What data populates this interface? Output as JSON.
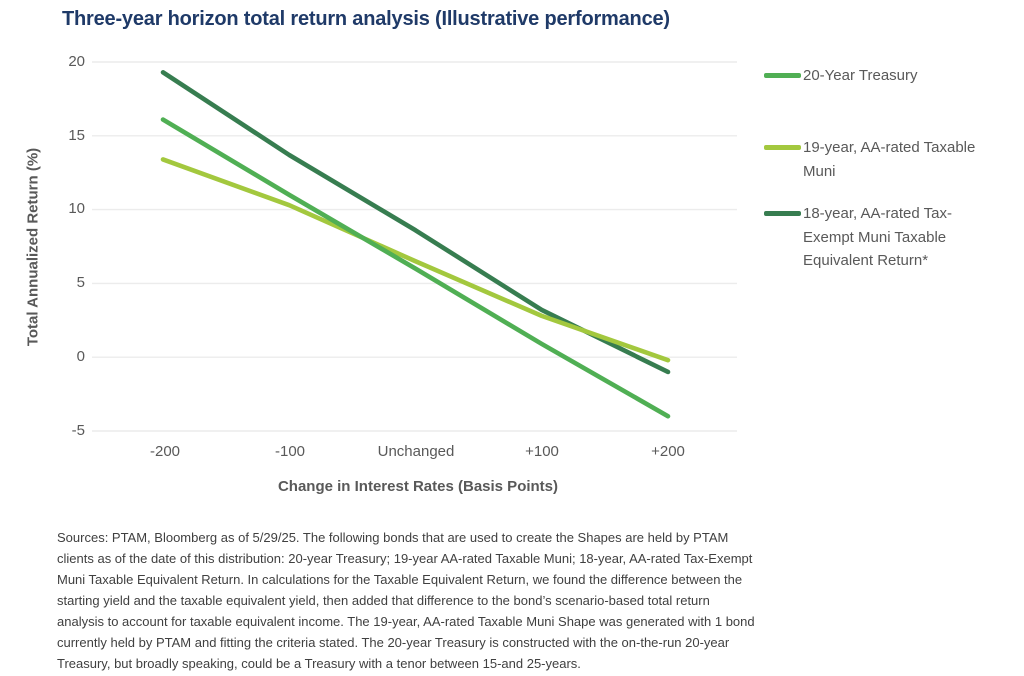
{
  "title": "Three-year horizon total return analysis (Illustrative performance)",
  "chart_data": {
    "type": "line",
    "categories": [
      "-200",
      "-100",
      "Unchanged",
      "+100",
      "+200"
    ],
    "series": [
      {
        "name": "20-Year Treasury",
        "color": "#50AF54",
        "values": [
          16.1,
          11.0,
          6.0,
          0.9,
          -4.0
        ]
      },
      {
        "name": "19-year, AA-rated Taxable Muni",
        "color": "#A3C83E",
        "values": [
          13.4,
          10.3,
          6.5,
          2.8,
          -0.2
        ]
      },
      {
        "name": "18-year, AA-rated Tax-Exempt Muni Taxable Equivalent Return*",
        "color": "#377D50",
        "values": [
          19.3,
          13.7,
          8.6,
          3.2,
          -1.0
        ]
      }
    ],
    "xlabel": "Change in Interest Rates (Basis Points)",
    "ylabel": "Total Annualized Return (%)",
    "ylim": [
      -5,
      20
    ],
    "yticks": [
      20,
      15,
      10,
      5,
      0,
      -5
    ],
    "ytick_labels": [
      "20",
      "15",
      "10",
      "5",
      "0",
      "-5"
    ],
    "grid": "horizontal",
    "legend_position": "right"
  },
  "footnote": "Sources: PTAM, Bloomberg as of 5/29/25. The following bonds that are used to create the Shapes are held by PTAM clients as of the date of this distribution: 20-year Treasury; 19-year AA-rated Taxable Muni; 18-year, AA-rated Tax-Exempt Muni Taxable Equivalent Return. In calculations for the Taxable Equivalent Return, we found the difference between the starting yield and the taxable equivalent yield, then added that difference to the bond’s scenario-based total return analysis to account for taxable equivalent income. The 19-year, AA-rated Taxable Muni Shape was generated with 1 bond currently held by PTAM and fitting the criteria stated. The 20-year Treasury is constructed with the on-the-run 20-year Treasury, but broadly speaking, could be a Treasury with a tenor between 15-and 25-years.",
  "colors": {
    "title": "#1F3A68",
    "axis_text": "#595959",
    "gridline": "#ECECEC",
    "footnote_text": "#404040"
  }
}
